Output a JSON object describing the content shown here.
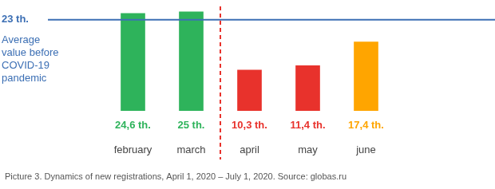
{
  "chart_data": {
    "type": "bar",
    "caption": "Picture 3. Dynamics of new registrations, April 1, 2020 – July 1, 2020. Source: globas.ru",
    "categories": [
      "february",
      "march",
      "april",
      "may",
      "june"
    ],
    "values": [
      24.6,
      25,
      10.3,
      11.4,
      17.4
    ],
    "value_labels": [
      "24,6 th.",
      "25 th.",
      "10,3 th.",
      "11,4 th.",
      "17,4 th."
    ],
    "colors": [
      "#2eb35b",
      "#2eb35b",
      "#e8322c",
      "#e8322c",
      "#ffa500"
    ],
    "ylim": [
      0,
      28
    ],
    "yticks": [],
    "tick_labels": false,
    "grid": false,
    "data_labels": true,
    "annotations": {
      "reference_line": {
        "value": 23,
        "label": "23 th.",
        "text": [
          "Average",
          "value before",
          "COVID-19",
          "pandemic"
        ],
        "color": "#3c6fb4"
      },
      "divider_after": "march",
      "divider_color": "#e8322c"
    }
  }
}
